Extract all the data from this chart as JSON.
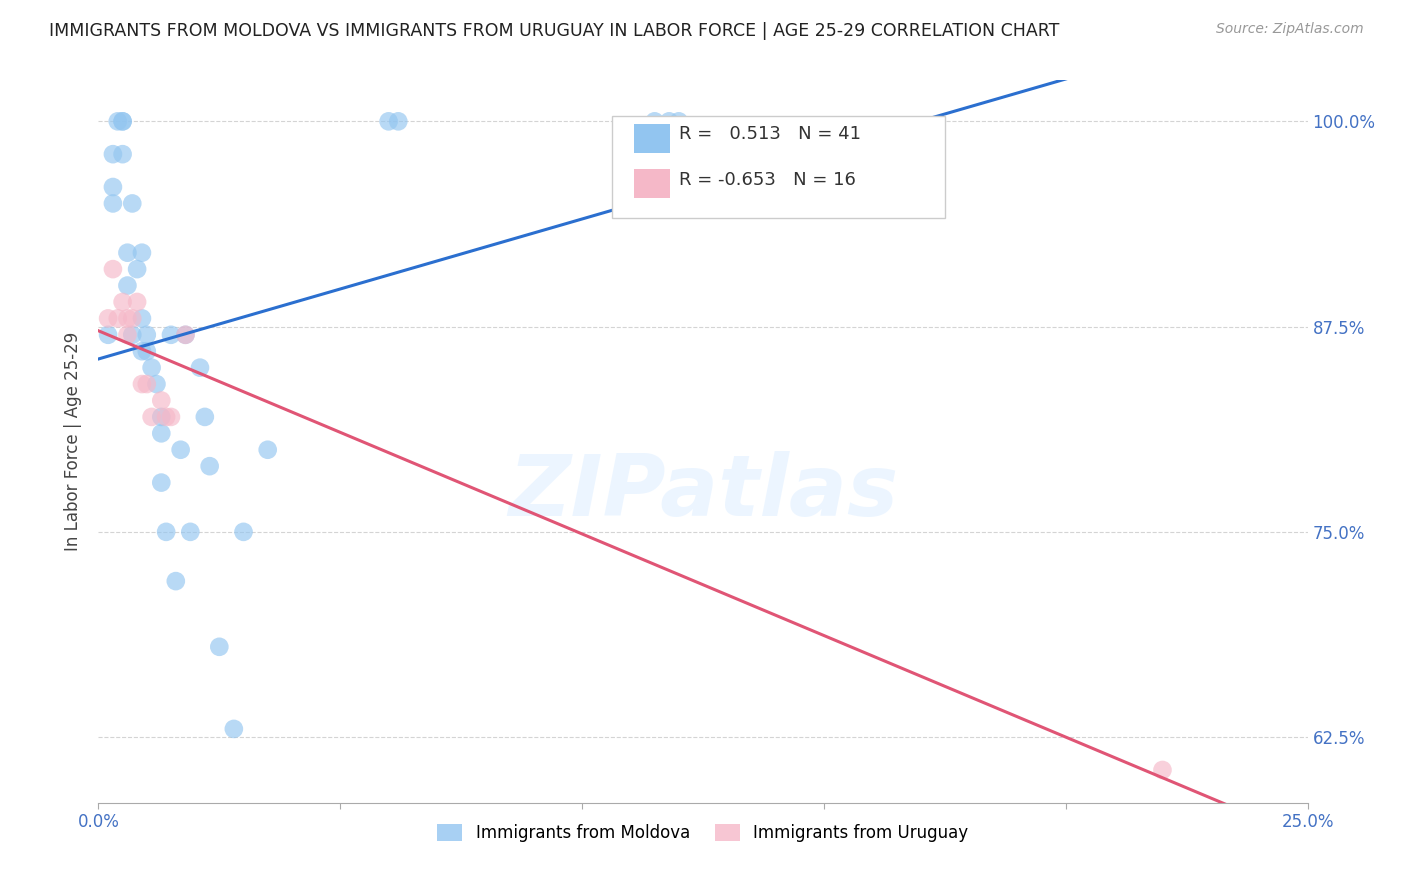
{
  "title": "IMMIGRANTS FROM MOLDOVA VS IMMIGRANTS FROM URUGUAY IN LABOR FORCE | AGE 25-29 CORRELATION CHART",
  "source": "Source: ZipAtlas.com",
  "ylabel": "In Labor Force | Age 25-29",
  "xlim": [
    0.0,
    0.25
  ],
  "ylim": [
    0.585,
    1.025
  ],
  "xticks": [
    0.0,
    0.05,
    0.1,
    0.15,
    0.2,
    0.25
  ],
  "xticklabels": [
    "0.0%",
    "",
    "",
    "",
    "",
    "25.0%"
  ],
  "yticks": [
    0.625,
    0.75,
    0.875,
    1.0
  ],
  "yticklabels": [
    "62.5%",
    "75.0%",
    "87.5%",
    "100.0%"
  ],
  "moldova_R": 0.513,
  "moldova_N": 41,
  "uruguay_R": -0.653,
  "uruguay_N": 16,
  "moldova_color": "#92c5f0",
  "uruguay_color": "#f5b8c8",
  "moldova_line_color": "#2b6fcf",
  "uruguay_line_color": "#e05575",
  "moldova_x": [
    0.002,
    0.003,
    0.003,
    0.003,
    0.004,
    0.005,
    0.005,
    0.005,
    0.006,
    0.006,
    0.007,
    0.007,
    0.008,
    0.009,
    0.009,
    0.009,
    0.01,
    0.01,
    0.011,
    0.012,
    0.013,
    0.013,
    0.013,
    0.014,
    0.015,
    0.016,
    0.017,
    0.018,
    0.019,
    0.021,
    0.022,
    0.023,
    0.025,
    0.028,
    0.03,
    0.035,
    0.06,
    0.062,
    0.115,
    0.118,
    0.12
  ],
  "moldova_y": [
    0.87,
    0.98,
    0.96,
    0.95,
    1.0,
    1.0,
    1.0,
    0.98,
    0.92,
    0.9,
    0.95,
    0.87,
    0.91,
    0.92,
    0.88,
    0.86,
    0.87,
    0.86,
    0.85,
    0.84,
    0.82,
    0.81,
    0.78,
    0.75,
    0.87,
    0.72,
    0.8,
    0.87,
    0.75,
    0.85,
    0.82,
    0.79,
    0.68,
    0.63,
    0.75,
    0.8,
    1.0,
    1.0,
    1.0,
    1.0,
    1.0
  ],
  "uruguay_x": [
    0.002,
    0.003,
    0.004,
    0.005,
    0.006,
    0.006,
    0.007,
    0.008,
    0.009,
    0.01,
    0.011,
    0.013,
    0.014,
    0.015,
    0.018,
    0.22
  ],
  "uruguay_y": [
    0.88,
    0.91,
    0.88,
    0.89,
    0.88,
    0.87,
    0.88,
    0.89,
    0.84,
    0.84,
    0.82,
    0.83,
    0.82,
    0.82,
    0.87,
    0.605
  ],
  "watermark": "ZIPatlas",
  "background_color": "#ffffff"
}
